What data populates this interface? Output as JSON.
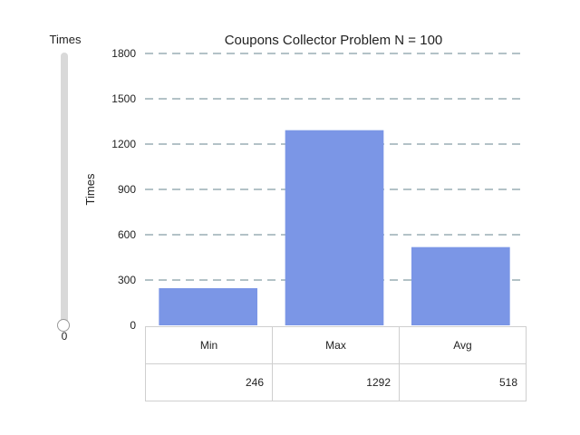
{
  "slider": {
    "label": "Times",
    "value": "0"
  },
  "chart_data": {
    "type": "bar",
    "title": "Coupons Collector Problem N = 100",
    "xlabel": "",
    "ylabel": "Times",
    "ylim": [
      0,
      1800
    ],
    "yticks": [
      0,
      300,
      600,
      900,
      1200,
      1500,
      1800
    ],
    "grid": true,
    "categories": [
      "Min",
      "Max",
      "Avg"
    ],
    "values": [
      246,
      1292,
      518
    ],
    "bar_color": "#7b96e6",
    "grid_color": "#b3c2c7"
  },
  "table": {
    "headers": [
      "Min",
      "Max",
      "Avg"
    ],
    "values": [
      "246",
      "1292",
      "518"
    ]
  }
}
